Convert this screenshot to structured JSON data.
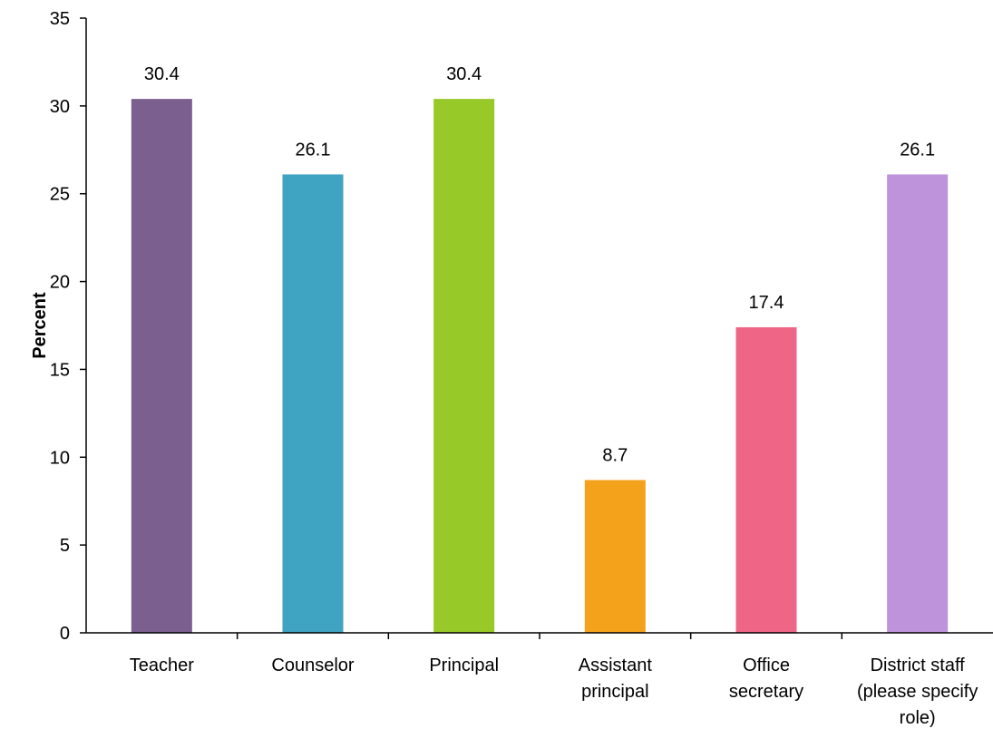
{
  "chart_data": {
    "type": "bar",
    "title": "",
    "xlabel": "",
    "ylabel": "Percent",
    "ylim": [
      0,
      35
    ],
    "yticks": [
      0,
      5,
      10,
      15,
      20,
      25,
      30,
      35
    ],
    "grid": false,
    "legend": "none",
    "categories": [
      [
        "Teacher"
      ],
      [
        "Counselor"
      ],
      [
        "Principal"
      ],
      [
        "Assistant",
        "principal"
      ],
      [
        "Office",
        "secretary"
      ],
      [
        "District staff",
        "(please specify",
        "role)"
      ]
    ],
    "values": [
      30.4,
      26.1,
      30.4,
      8.7,
      17.4,
      26.1
    ],
    "value_labels": [
      "30.4",
      "26.1",
      "30.4",
      "8.7",
      "17.4",
      "26.1"
    ],
    "colors": [
      "#7B5F8E",
      "#3FA3C2",
      "#97C928",
      "#F4A21C",
      "#EF6585",
      "#BE93DC"
    ]
  }
}
